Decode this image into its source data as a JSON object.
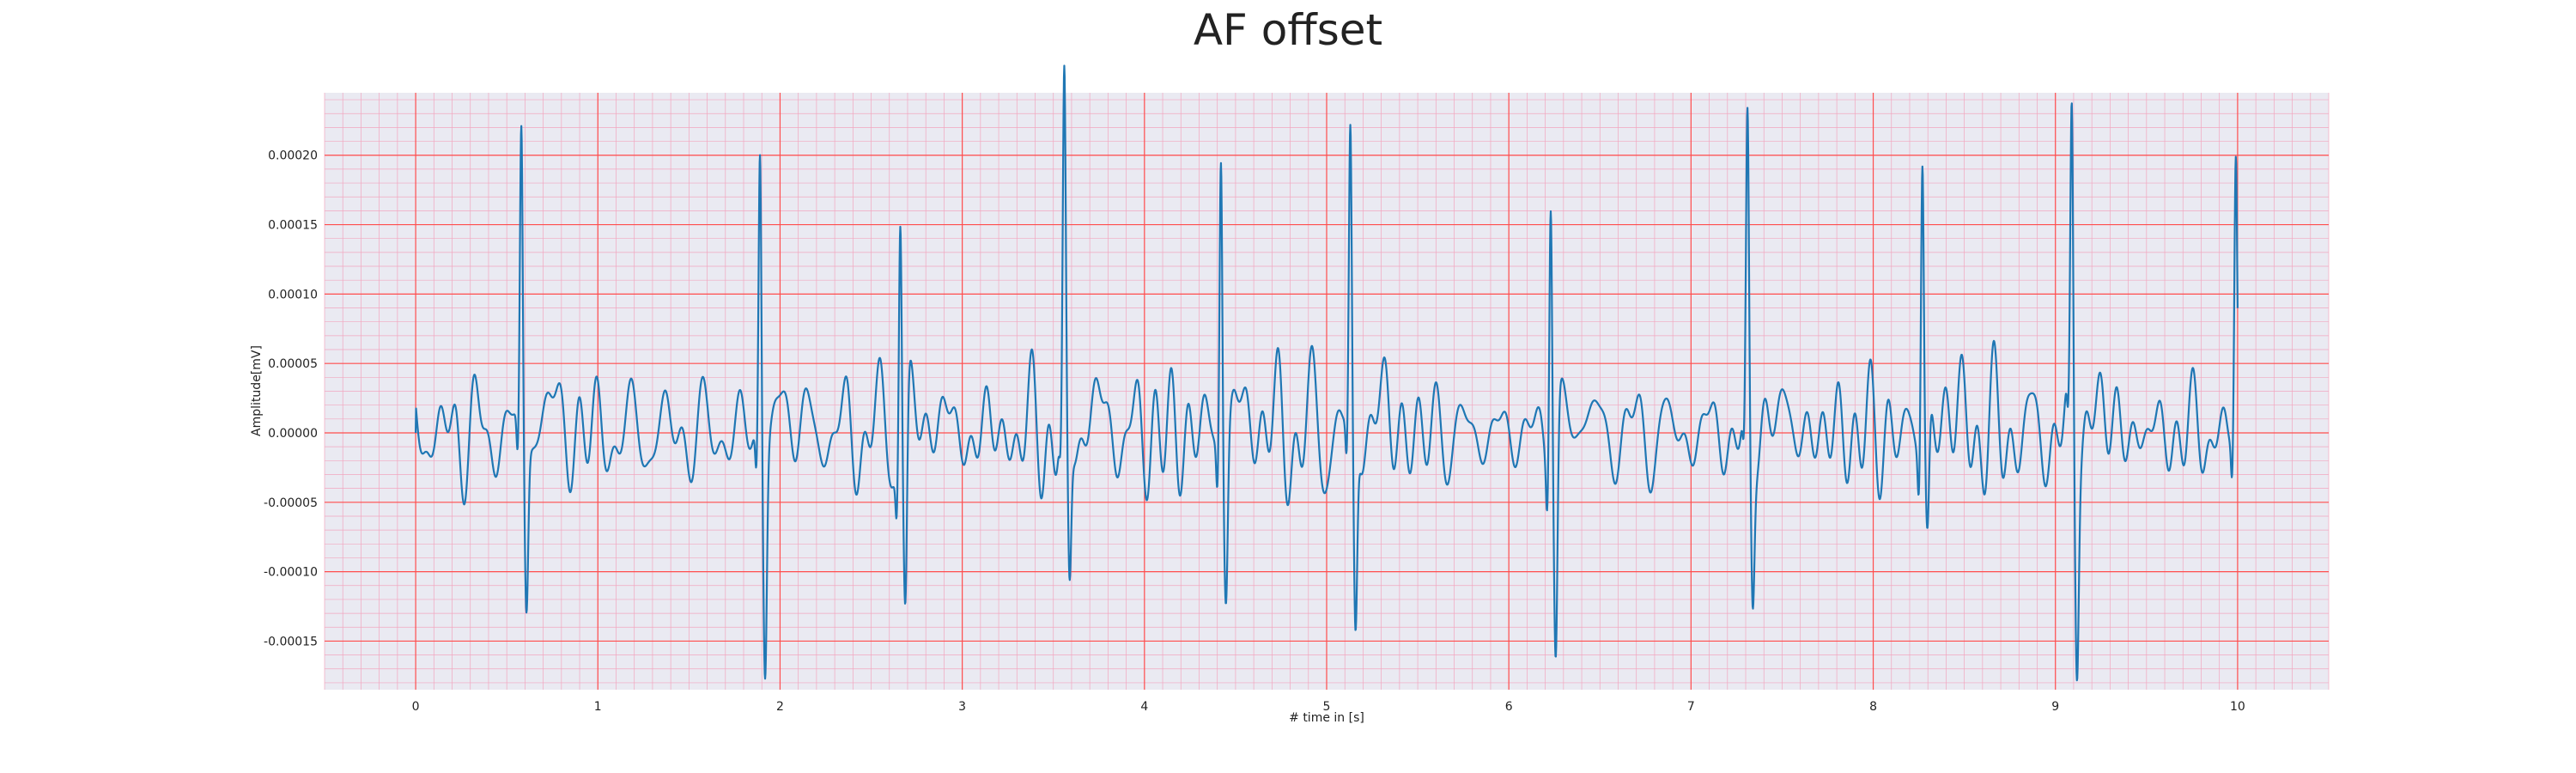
{
  "chart_data": {
    "type": "line",
    "title": "AF offset",
    "xlabel": "# time in [s]",
    "ylabel": "Amplitude[mV]",
    "xlim": [
      -0.5,
      10.5
    ],
    "ylim": [
      -0.000185,
      0.000245
    ],
    "x_ticks": [
      0,
      1,
      2,
      3,
      4,
      5,
      6,
      7,
      8,
      9,
      10
    ],
    "x_tick_labels": [
      "0",
      "1",
      "2",
      "3",
      "4",
      "5",
      "6",
      "7",
      "8",
      "9",
      "10"
    ],
    "y_ticks": [
      -0.00015,
      -0.0001,
      -5e-05,
      0,
      5e-05,
      0.0001,
      0.00015,
      0.0002
    ],
    "y_tick_labels": [
      "-0.00015",
      "-0.00010",
      "-0.00005",
      "0.00000",
      "0.00005",
      "0.00010",
      "0.00015",
      "0.00020"
    ],
    "grid": "major red, minor pink",
    "background": "#eaeaf2",
    "colors": {
      "line": "#1f77b4",
      "major_grid": "#ff4d4d",
      "minor_grid": "#f2a6bf"
    },
    "series": [
      {
        "name": "AF offset signal",
        "sample_rate_hz": 100,
        "beats": [
          {
            "t": 0.58,
            "r": 0.000218,
            "s": -0.000119
          },
          {
            "t": 1.89,
            "r": 0.00021,
            "s": -0.000157
          },
          {
            "t": 2.66,
            "r": 0.000177,
            "s": -0.000143
          },
          {
            "t": 3.56,
            "r": 0.000212,
            "s": -0.000122
          },
          {
            "t": 4.42,
            "r": 0.000226,
            "s": -0.000102
          },
          {
            "t": 5.13,
            "r": 0.000202,
            "s": -0.000152
          },
          {
            "t": 6.23,
            "r": 0.000198,
            "s": -0.000166
          },
          {
            "t": 7.31,
            "r": 0.000198,
            "s": -0.000115
          },
          {
            "t": 8.27,
            "r": 0.00021,
            "s": -8.6e-05
          },
          {
            "t": 9.09,
            "r": 0.000216,
            "s": -0.00014
          },
          {
            "t": 9.99,
            "r": 0.000187,
            "s": -4.2e-05
          }
        ],
        "t_start": 0,
        "t_end": 10
      }
    ]
  }
}
